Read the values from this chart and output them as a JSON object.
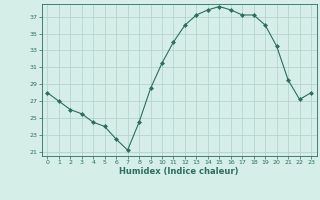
{
  "x": [
    0,
    1,
    2,
    3,
    4,
    5,
    6,
    7,
    8,
    9,
    10,
    11,
    12,
    13,
    14,
    15,
    16,
    17,
    18,
    19,
    20,
    21,
    22,
    23
  ],
  "y": [
    28.0,
    27.0,
    26.0,
    25.5,
    24.5,
    24.0,
    22.5,
    21.2,
    24.5,
    28.5,
    31.5,
    34.0,
    36.0,
    37.2,
    37.8,
    38.2,
    37.8,
    37.2,
    37.2,
    36.0,
    33.5,
    29.5,
    27.2,
    28.0
  ],
  "line_color": "#2d6e5e",
  "marker_color": "#2d6e5e",
  "bg_color": "#d6eee8",
  "grid_color": "#b0cfc9",
  "xlabel": "Humidex (Indice chaleur)",
  "xlim": [
    -0.5,
    23.5
  ],
  "ylim": [
    20.5,
    38.5
  ],
  "yticks": [
    21,
    23,
    25,
    27,
    29,
    31,
    33,
    35,
    37
  ],
  "xticks": [
    0,
    1,
    2,
    3,
    4,
    5,
    6,
    7,
    8,
    9,
    10,
    11,
    12,
    13,
    14,
    15,
    16,
    17,
    18,
    19,
    20,
    21,
    22,
    23
  ],
  "tick_color": "#2d6e5e",
  "label_color": "#2d6e5e",
  "axis_color": "#2d6e5e",
  "figsize": [
    3.2,
    2.0
  ],
  "dpi": 100
}
